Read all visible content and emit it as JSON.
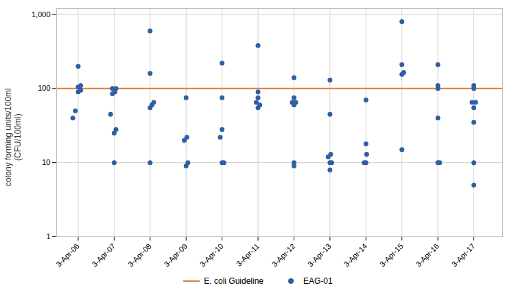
{
  "chart_data": {
    "type": "scatter",
    "ylabel": "colony forming units/100ml\n(CFU/100ml)",
    "log": "y",
    "grid": true,
    "legend": "bottom",
    "xlim": [
      2005.4,
      2017.8
    ],
    "xticks": [
      {
        "value": 2006,
        "label": "3-Apr-06"
      },
      {
        "value": 2007,
        "label": "3-Apr-07"
      },
      {
        "value": 2008,
        "label": "3-Apr-08"
      },
      {
        "value": 2009,
        "label": "3-Apr-09"
      },
      {
        "value": 2010,
        "label": "3-Apr-10"
      },
      {
        "value": 2011,
        "label": "3-Apr-11"
      },
      {
        "value": 2012,
        "label": "3-Apr-12"
      },
      {
        "value": 2013,
        "label": "3-Apr-13"
      },
      {
        "value": 2014,
        "label": "3-Apr-14"
      },
      {
        "value": 2015,
        "label": "3-Apr-15"
      },
      {
        "value": 2016,
        "label": "3-Apr-16"
      },
      {
        "value": 2017,
        "label": "3-Apr-17"
      }
    ],
    "ylim": [
      1,
      1200
    ],
    "yticks": [
      1,
      10,
      100,
      {
        "value": 1000,
        "label": "1,000"
      }
    ],
    "series": [
      {
        "name": "E. coli Guideline",
        "type": "hline",
        "color": "#e8793a",
        "value": 100
      },
      {
        "name": "EAG-01",
        "type": "scatter",
        "color": "#2e5fa3",
        "x": [
          2005.85,
          2005.92,
          2006.0,
          2006.07,
          2006.0,
          2006.07,
          2006.0,
          2007.0,
          2007.0,
          2007.05,
          2006.9,
          2006.95,
          2007.02,
          2006.95,
          2007.05,
          2008.0,
          2008.0,
          2008.05,
          2008.1,
          2008.0,
          2008.0,
          2009.0,
          2009.05,
          2008.95,
          2009.02,
          2009.0,
          2010.0,
          2010.05,
          2009.95,
          2010.0,
          2010.0,
          2010.0,
          2011.0,
          2011.05,
          2010.95,
          2011.0,
          2011.0,
          2011.0,
          2012.0,
          2012.0,
          2012.0,
          2012.05,
          2011.95,
          2012.0,
          2012.0,
          2013.0,
          2013.0,
          2013.05,
          2012.95,
          2013.02,
          2013.0,
          2013.0,
          2014.0,
          2013.95,
          2014.02,
          2014.0,
          2014.0,
          2015.0,
          2015.0,
          2015.05,
          2015.0,
          2015.0,
          2016.0,
          2016.05,
          2016.0,
          2016.0,
          2016.0,
          2016.0,
          2017.0,
          2017.0,
          2017.0,
          2017.0,
          2017.05,
          2016.95,
          2017.0,
          2017.0
        ],
        "values": [
          40,
          50,
          90,
          95,
          105,
          110,
          200,
          10,
          25,
          28,
          45,
          85,
          90,
          100,
          100,
          10,
          55,
          60,
          65,
          160,
          600,
          9,
          10,
          20,
          22,
          75,
          10,
          10,
          22,
          28,
          75,
          220,
          55,
          60,
          65,
          75,
          90,
          380,
          9,
          10,
          60,
          65,
          65,
          75,
          140,
          8,
          10,
          10,
          12,
          13,
          45,
          130,
          10,
          10,
          13,
          18,
          70,
          15,
          155,
          165,
          210,
          800,
          10,
          10,
          40,
          100,
          110,
          210,
          5,
          10,
          35,
          55,
          65,
          65,
          100,
          110
        ]
      }
    ]
  }
}
